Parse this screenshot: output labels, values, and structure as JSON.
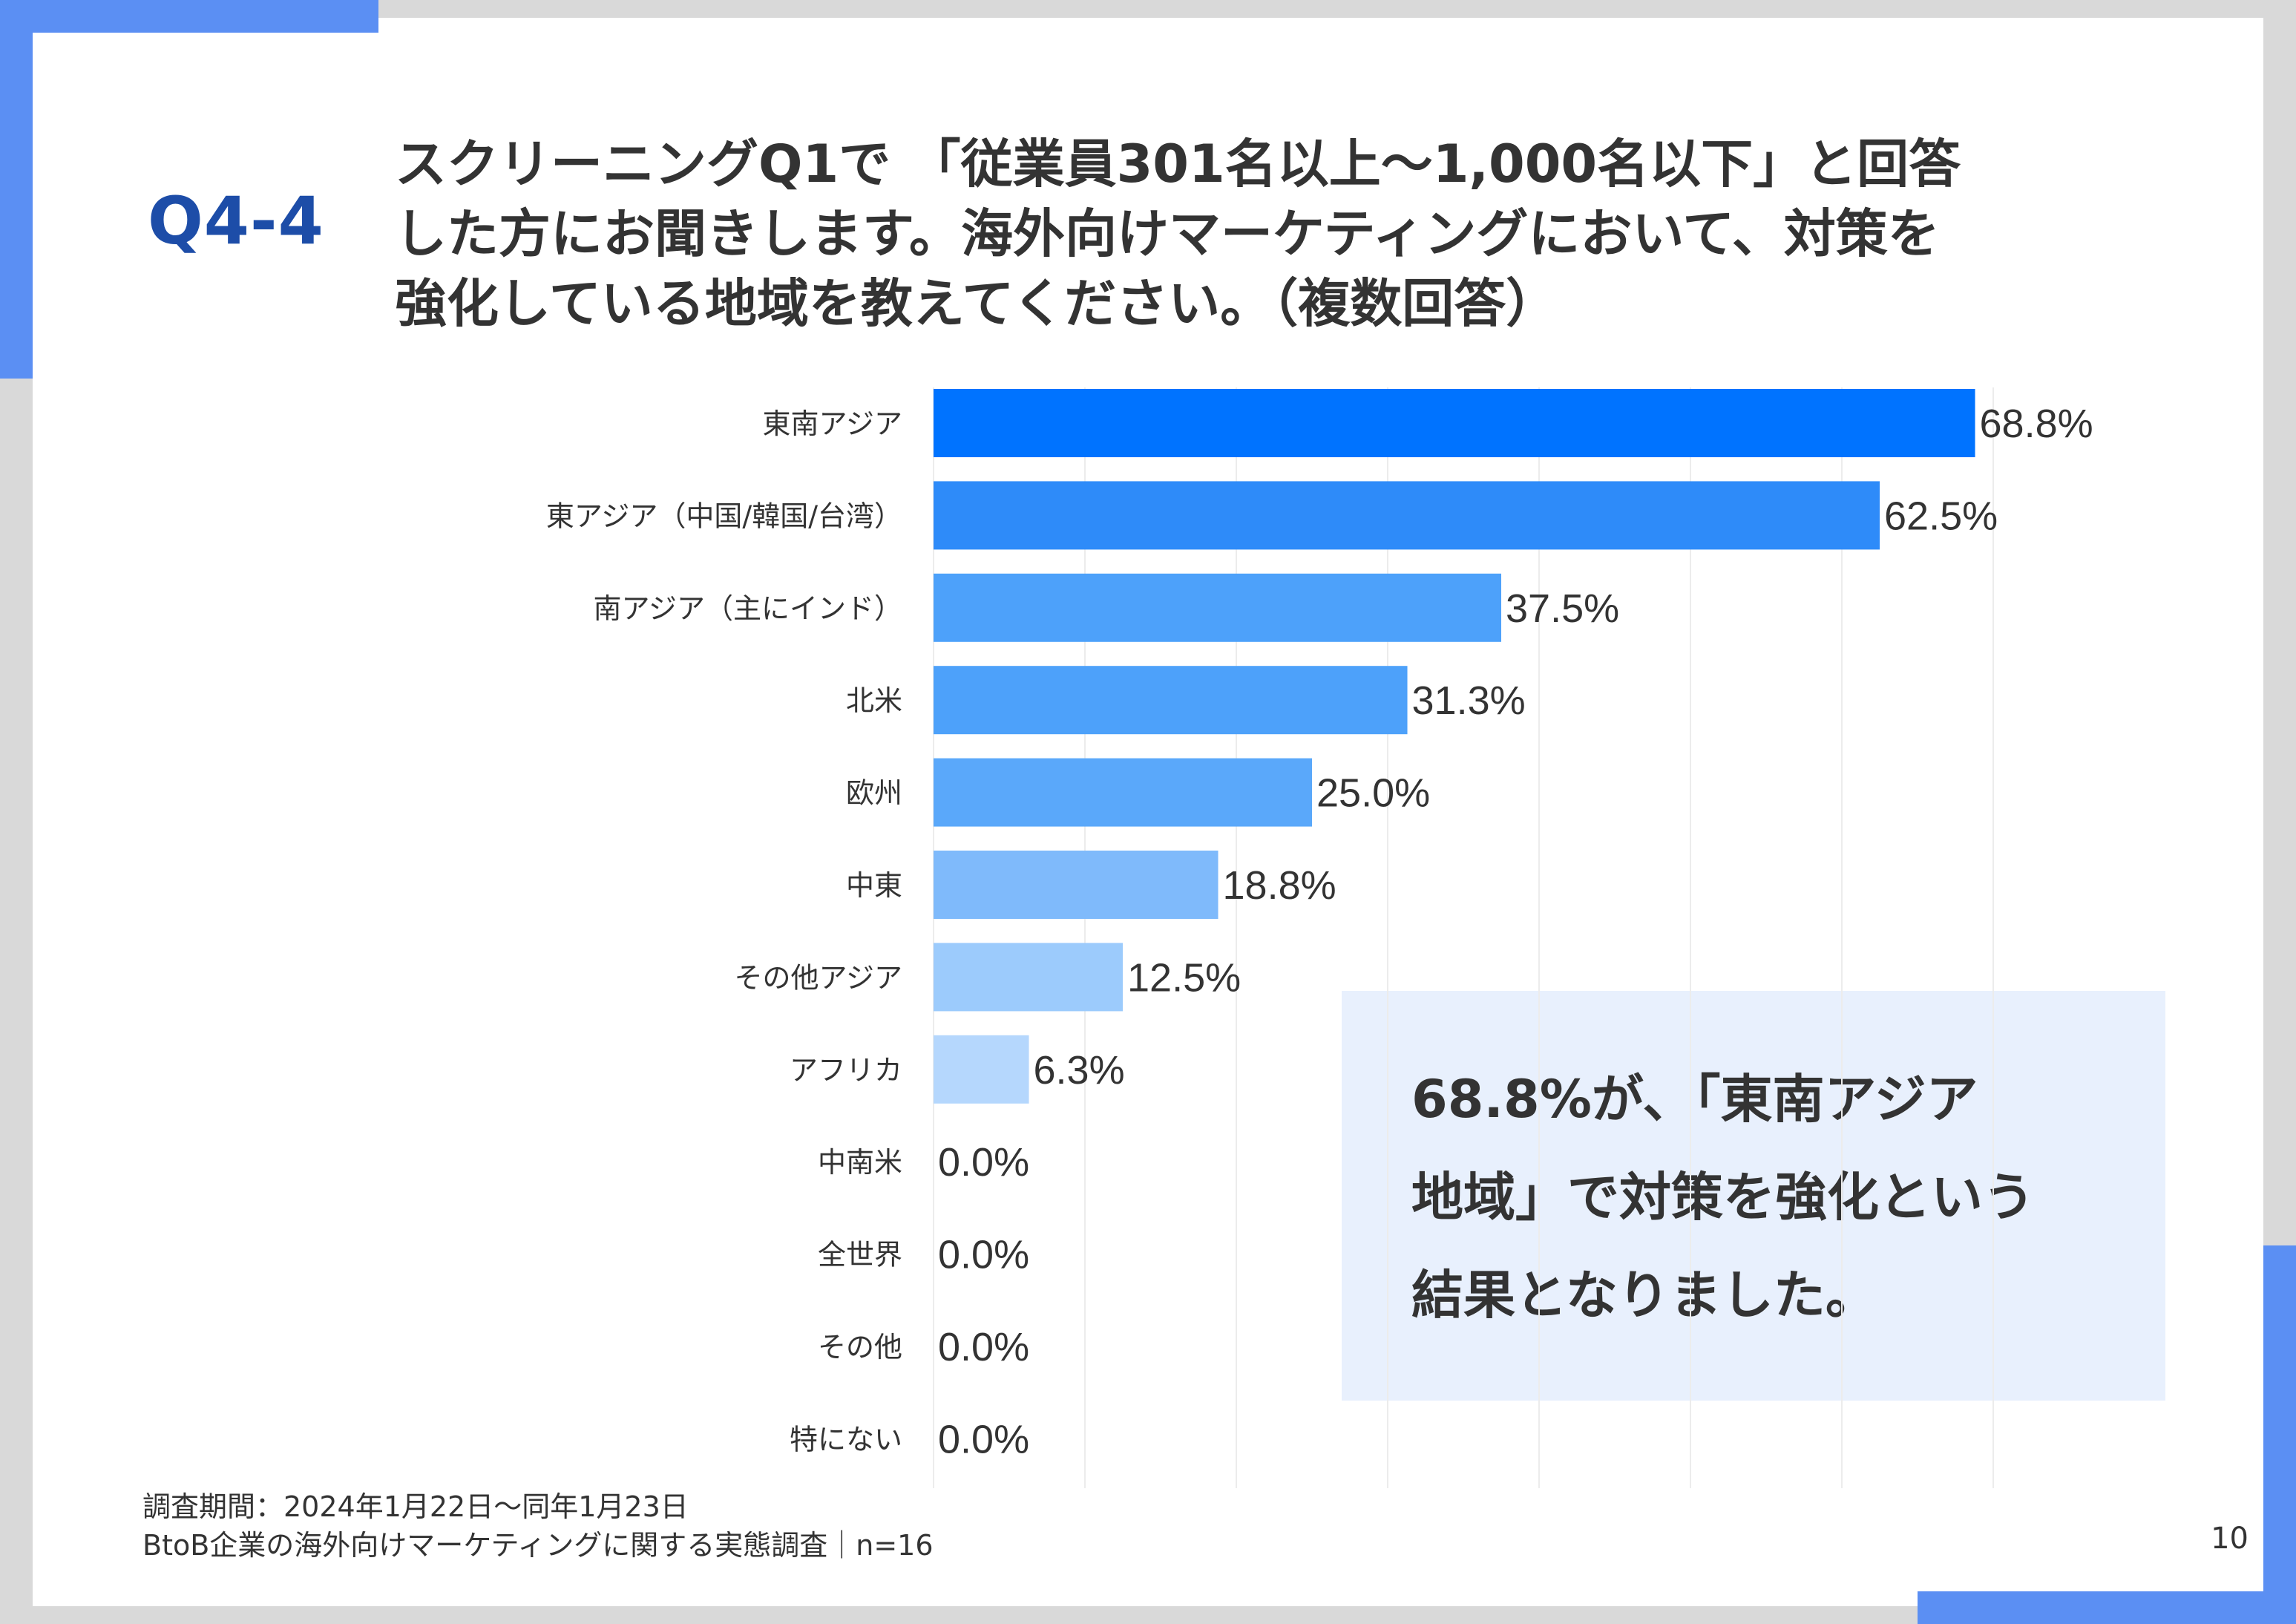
{
  "header": {
    "qnum": "Q4-4",
    "question_lines": [
      "スクリーニングQ1で 「従業員301名以上～1,000名以下」と回答",
      "した方にお聞きします。海外向けマーケティングにおいて、対策を",
      "強化している地域を教えてください。（複数回答）"
    ]
  },
  "chart_data": {
    "type": "bar",
    "orientation": "horizontal",
    "categories": [
      "東南アジア",
      "東アジア（中国/韓国/台湾）",
      "南アジア（主にインド）",
      "北米",
      "欧州",
      "中東",
      "その他アジア",
      "アフリカ",
      "中南米",
      "全世界",
      "その他",
      "特にない"
    ],
    "values": [
      68.8,
      62.5,
      37.5,
      31.3,
      25.0,
      18.8,
      12.5,
      6.3,
      0.0,
      0.0,
      0.0,
      0.0
    ],
    "value_labels": [
      "68.8%",
      "62.5%",
      "37.5%",
      "31.3%",
      "25.0%",
      "18.8%",
      "12.5%",
      "6.3%",
      "0.0%",
      "0.0%",
      "0.0%",
      "0.0%"
    ],
    "bar_colors": [
      "#0073ff",
      "#2e8bf9",
      "#4da1fa",
      "#4da1fa",
      "#5aa8fa",
      "#7fbafb",
      "#9ccbfc",
      "#b5d7fd",
      "#b5d7fd",
      "#b5d7fd",
      "#b5d7fd",
      "#b5d7fd"
    ],
    "xlim": [
      0,
      75
    ],
    "grid": true
  },
  "callout": {
    "lines": [
      "68.8%が、「東南アジア",
      "地域」で対策を強化という",
      "結果となりました。"
    ]
  },
  "footer": {
    "period": "調査期間：2024年1月22日～同年1月23日",
    "survey": "BtoB企業の海外向けマーケティングに関する実態調査｜n=16"
  },
  "page_number": "10"
}
